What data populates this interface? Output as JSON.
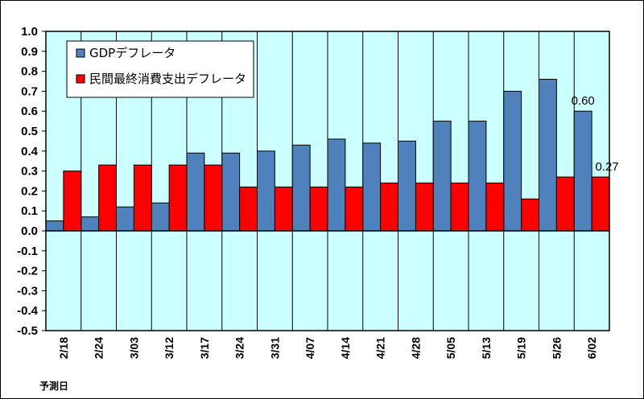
{
  "chart_data": {
    "type": "bar",
    "categories": [
      "2/18",
      "2/24",
      "3/03",
      "3/12",
      "3/17",
      "3/24",
      "3/31",
      "4/07",
      "4/14",
      "4/21",
      "4/28",
      "5/05",
      "5/13",
      "5/19",
      "5/26",
      "6/02"
    ],
    "series": [
      {
        "name": "GDPデフレータ",
        "color": "#4f81bd",
        "values": [
          0.05,
          0.07,
          0.12,
          0.14,
          0.39,
          0.39,
          0.4,
          0.43,
          0.46,
          0.44,
          0.45,
          0.55,
          0.55,
          0.7,
          0.76,
          0.6
        ]
      },
      {
        "name": "民間最終消費支出デフレータ",
        "color": "#ff0000",
        "values": [
          0.3,
          0.33,
          0.33,
          0.33,
          0.33,
          0.22,
          0.22,
          0.22,
          0.22,
          0.24,
          0.24,
          0.24,
          0.24,
          0.16,
          0.27,
          0.27
        ]
      }
    ],
    "data_labels": [
      {
        "series": 0,
        "index": 15,
        "text": "0.60"
      },
      {
        "series": 1,
        "index": 15,
        "text": "0.27"
      }
    ],
    "ylim": [
      -0.5,
      1.0
    ],
    "yticks": [
      1.0,
      0.9,
      0.8,
      0.7,
      0.6,
      0.5,
      0.4,
      0.3,
      0.2,
      0.1,
      0.0,
      -0.1,
      -0.2,
      -0.3,
      -0.4,
      -0.5
    ],
    "ytick_labels": [
      "1.0",
      "0.9",
      "0.8",
      "0.7",
      "0.6",
      "0.5",
      "0.4",
      "0.3",
      "0.2",
      "0.1",
      "0.0",
      "-0.1",
      "-0.2",
      "-0.3",
      "-0.4",
      "-0.5"
    ],
    "xlabel": "予測日",
    "ylabel": "",
    "title": "",
    "legend_position": "top-left",
    "plot_background": "#ccffff",
    "grid": "vertical lines between categories"
  }
}
